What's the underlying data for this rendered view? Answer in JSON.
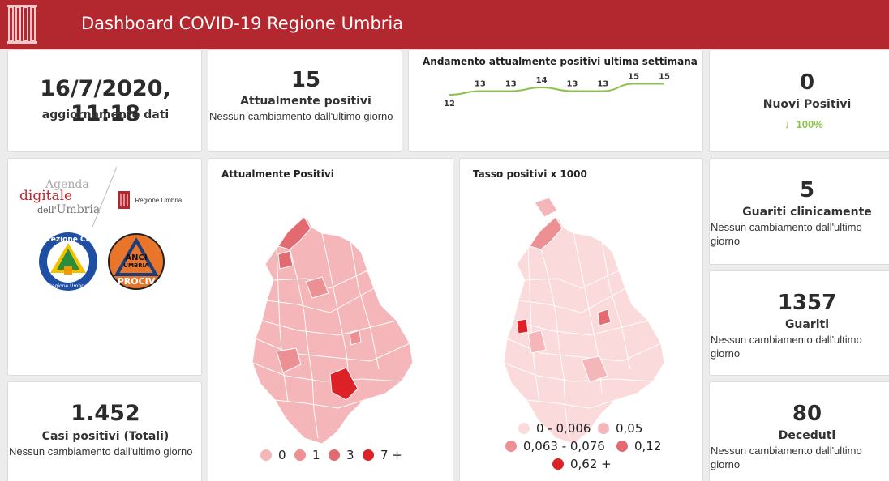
{
  "header": {
    "title": "Dashboard COVID-19 Regione Umbria"
  },
  "update": {
    "datetime": "16/7/2020, 11:18",
    "label": "aggiornamento dati"
  },
  "attualmente_positivi": {
    "value": "15",
    "label": "Attualmente positivi",
    "delta": "Nessun cambiamento dall'ultimo giorno"
  },
  "trend": {
    "title": "Andamento attualmente positivi ultima settimana"
  },
  "nuovi_positivi": {
    "value": "0",
    "label": "Nuovi Positivi",
    "change": "100%",
    "change_color": "#8bc34a"
  },
  "logos": {
    "agenda_line1": "Agenda",
    "agenda_line2": "digitale",
    "agenda_line3a": "dell'",
    "agenda_line3b": "Umbria",
    "regione": "Regione Umbria",
    "protezione": "Protezione Civile",
    "protezione_sub": "Regione Umbria",
    "anci_line1": "ANCI",
    "anci_line2": "UMBRIA",
    "anci_line3": "PROCIV"
  },
  "map_positivi": {
    "title": "Attualmente Positivi",
    "legend": [
      {
        "label": "0",
        "color": "#f4b6b8"
      },
      {
        "label": "1",
        "color": "#ec9094"
      },
      {
        "label": "3",
        "color": "#e36a70"
      },
      {
        "label": "7 +",
        "color": "#dc2227"
      }
    ]
  },
  "map_tasso": {
    "title": "Tasso positivi x 1000",
    "legend": [
      {
        "label": "0 - 0,006",
        "color": "#fadadb"
      },
      {
        "label": "0,05",
        "color": "#f4b6b8"
      },
      {
        "label": "0,063 - 0,076",
        "color": "#ec9094"
      },
      {
        "label": "0,12",
        "color": "#e36a70"
      },
      {
        "label": "0,62 +",
        "color": "#dc2227"
      }
    ]
  },
  "casi_totali": {
    "value": "1.452",
    "label": "Casi positivi (Totali)",
    "delta": "Nessun cambiamento dall'ultimo giorno"
  },
  "guariti_clinicamente": {
    "value": "5",
    "label": "Guariti clinicamente",
    "delta": "Nessun cambiamento dall'ultimo giorno"
  },
  "guariti": {
    "value": "1357",
    "label": "Guariti",
    "delta": "Nessun cambiamento dall'ultimo giorno"
  },
  "deceduti": {
    "value": "80",
    "label": "Deceduti",
    "delta": "Nessun cambiamento dall'ultimo giorno"
  },
  "chart_data": {
    "type": "line",
    "title": "Andamento attualmente positivi ultima settimana",
    "x": [
      "1",
      "2",
      "3",
      "4",
      "5",
      "6",
      "7",
      "8"
    ],
    "values": [
      12,
      13,
      13,
      14,
      13,
      13,
      15,
      15
    ],
    "labels": [
      "12",
      "13",
      "13",
      "14",
      "13",
      "13",
      "15",
      "15"
    ],
    "line_color": "#8bc34a",
    "grid": false
  }
}
